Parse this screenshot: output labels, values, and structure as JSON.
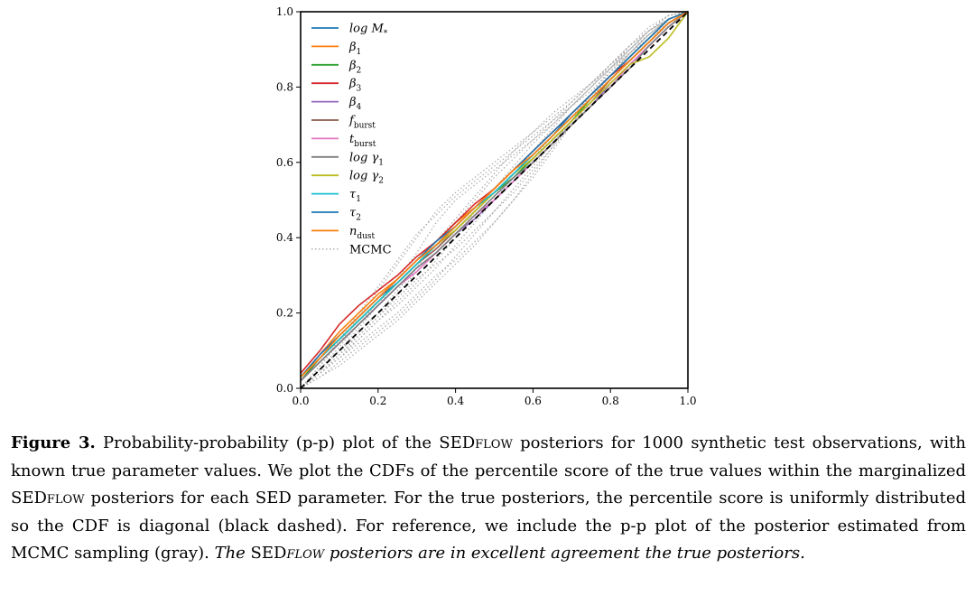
{
  "chart_data": {
    "type": "line",
    "title": "",
    "xlabel": "",
    "ylabel": "",
    "xlim": [
      0,
      1
    ],
    "ylim": [
      0,
      1
    ],
    "xticks": [
      "0.0",
      "0.2",
      "0.4",
      "0.6",
      "0.8",
      "1.0"
    ],
    "yticks": [
      "0.0",
      "0.2",
      "0.4",
      "0.6",
      "0.8",
      "1.0"
    ],
    "grid": false,
    "legend_position": "top-left",
    "diagonal": {
      "style": "black dashed",
      "x": [
        0,
        1
      ],
      "y": [
        0,
        1
      ]
    },
    "x": [
      0,
      0.05,
      0.1,
      0.15,
      0.2,
      0.25,
      0.3,
      0.35,
      0.4,
      0.45,
      0.5,
      0.55,
      0.6,
      0.65,
      0.7,
      0.75,
      0.8,
      0.85,
      0.9,
      0.95,
      1.0
    ],
    "series": [
      {
        "name": "log M_*",
        "legend_main": "log M",
        "legend_sub": "*",
        "color": "#1f77b4",
        "values": [
          0.03,
          0.09,
          0.14,
          0.19,
          0.24,
          0.28,
          0.33,
          0.38,
          0.43,
          0.48,
          0.52,
          0.57,
          0.62,
          0.67,
          0.73,
          0.78,
          0.83,
          0.88,
          0.93,
          0.98,
          1.0
        ]
      },
      {
        "name": "β1",
        "legend_main": "β",
        "legend_sub": "1",
        "color": "#ff7f0e",
        "values": [
          0.03,
          0.09,
          0.15,
          0.2,
          0.25,
          0.29,
          0.34,
          0.39,
          0.44,
          0.48,
          0.53,
          0.58,
          0.63,
          0.68,
          0.73,
          0.78,
          0.83,
          0.88,
          0.93,
          0.98,
          1.0
        ]
      },
      {
        "name": "β2",
        "legend_main": "β",
        "legend_sub": "2",
        "color": "#2ca02c",
        "values": [
          0.02,
          0.08,
          0.13,
          0.18,
          0.23,
          0.28,
          0.33,
          0.38,
          0.42,
          0.47,
          0.52,
          0.56,
          0.61,
          0.66,
          0.71,
          0.77,
          0.82,
          0.87,
          0.92,
          0.97,
          1.0
        ]
      },
      {
        "name": "β3",
        "legend_main": "β",
        "legend_sub": "3",
        "color": "#d62728",
        "values": [
          0.04,
          0.1,
          0.17,
          0.22,
          0.26,
          0.3,
          0.35,
          0.39,
          0.44,
          0.49,
          0.53,
          0.58,
          0.63,
          0.68,
          0.73,
          0.78,
          0.83,
          0.87,
          0.92,
          0.97,
          1.0
        ]
      },
      {
        "name": "β4",
        "legend_main": "β",
        "legend_sub": "4",
        "color": "#9467bd",
        "values": [
          0.02,
          0.07,
          0.12,
          0.17,
          0.22,
          0.27,
          0.32,
          0.36,
          0.41,
          0.45,
          0.5,
          0.55,
          0.6,
          0.65,
          0.7,
          0.75,
          0.81,
          0.86,
          0.91,
          0.96,
          1.0
        ]
      },
      {
        "name": "f_burst",
        "legend_main": "f",
        "legend_sub": "burst",
        "color": "#8c564b",
        "values": [
          0.03,
          0.08,
          0.13,
          0.18,
          0.23,
          0.28,
          0.33,
          0.37,
          0.42,
          0.47,
          0.52,
          0.57,
          0.61,
          0.66,
          0.71,
          0.76,
          0.82,
          0.87,
          0.92,
          0.97,
          1.0
        ]
      },
      {
        "name": "t_burst",
        "legend_main": "t",
        "legend_sub": "burst",
        "color": "#e377c2",
        "values": [
          0.02,
          0.07,
          0.12,
          0.17,
          0.22,
          0.27,
          0.31,
          0.36,
          0.41,
          0.46,
          0.5,
          0.55,
          0.6,
          0.65,
          0.7,
          0.75,
          0.8,
          0.86,
          0.91,
          0.96,
          1.0
        ]
      },
      {
        "name": "log γ1",
        "legend_main": "log γ",
        "legend_sub": "1",
        "color": "#7f7f7f",
        "values": [
          0.02,
          0.07,
          0.12,
          0.17,
          0.22,
          0.27,
          0.32,
          0.36,
          0.41,
          0.46,
          0.51,
          0.56,
          0.6,
          0.65,
          0.7,
          0.75,
          0.8,
          0.85,
          0.91,
          0.96,
          1.0
        ]
      },
      {
        "name": "log γ2",
        "legend_main": "log γ",
        "legend_sub": "2",
        "color": "#bcbd22",
        "values": [
          0.03,
          0.08,
          0.13,
          0.18,
          0.23,
          0.28,
          0.33,
          0.38,
          0.42,
          0.47,
          0.52,
          0.57,
          0.61,
          0.66,
          0.71,
          0.76,
          0.81,
          0.86,
          0.88,
          0.93,
          1.0
        ]
      },
      {
        "name": "τ1",
        "legend_main": "τ",
        "legend_sub": "1",
        "color": "#17becf",
        "values": [
          0.03,
          0.08,
          0.13,
          0.18,
          0.23,
          0.28,
          0.33,
          0.38,
          0.43,
          0.48,
          0.52,
          0.57,
          0.62,
          0.67,
          0.72,
          0.77,
          0.82,
          0.87,
          0.92,
          0.97,
          1.0
        ]
      },
      {
        "name": "τ2",
        "legend_main": "τ",
        "legend_sub": "2",
        "color": "#1f77b4",
        "values": [
          0.03,
          0.09,
          0.14,
          0.19,
          0.24,
          0.29,
          0.34,
          0.39,
          0.43,
          0.48,
          0.53,
          0.58,
          0.63,
          0.68,
          0.73,
          0.78,
          0.83,
          0.88,
          0.93,
          0.98,
          1.0
        ]
      },
      {
        "name": "n_dust",
        "legend_main": "n",
        "legend_sub": "dust",
        "color": "#ff7f0e",
        "values": [
          0.03,
          0.08,
          0.14,
          0.19,
          0.24,
          0.29,
          0.34,
          0.38,
          0.43,
          0.48,
          0.53,
          0.58,
          0.62,
          0.67,
          0.72,
          0.77,
          0.82,
          0.87,
          0.92,
          0.97,
          1.0
        ]
      }
    ],
    "mcmc": {
      "name": "MCMC",
      "legend_main": "MCMC",
      "color": "#aaaaaa",
      "style": "dotted",
      "curves": [
        [
          0.0,
          0.05,
          0.1,
          0.16,
          0.22,
          0.29,
          0.36,
          0.44,
          0.5,
          0.54,
          0.58,
          0.62,
          0.66,
          0.7,
          0.75,
          0.8,
          0.85,
          0.9,
          0.95,
          0.98,
          1.0
        ],
        [
          0.0,
          0.04,
          0.08,
          0.12,
          0.16,
          0.2,
          0.25,
          0.3,
          0.34,
          0.39,
          0.44,
          0.5,
          0.56,
          0.63,
          0.7,
          0.77,
          0.84,
          0.9,
          0.95,
          0.98,
          1.0
        ],
        [
          0.0,
          0.06,
          0.12,
          0.19,
          0.26,
          0.33,
          0.4,
          0.47,
          0.52,
          0.56,
          0.6,
          0.64,
          0.68,
          0.72,
          0.76,
          0.81,
          0.86,
          0.91,
          0.96,
          0.99,
          1.0
        ],
        [
          0.0,
          0.03,
          0.07,
          0.11,
          0.15,
          0.19,
          0.24,
          0.29,
          0.35,
          0.41,
          0.47,
          0.53,
          0.59,
          0.65,
          0.71,
          0.77,
          0.83,
          0.89,
          0.94,
          0.98,
          1.0
        ],
        [
          0.0,
          0.05,
          0.11,
          0.17,
          0.23,
          0.28,
          0.33,
          0.38,
          0.44,
          0.5,
          0.56,
          0.61,
          0.66,
          0.71,
          0.76,
          0.81,
          0.86,
          0.91,
          0.95,
          0.98,
          1.0
        ],
        [
          0.0,
          0.04,
          0.09,
          0.14,
          0.19,
          0.24,
          0.29,
          0.33,
          0.37,
          0.42,
          0.47,
          0.52,
          0.58,
          0.64,
          0.7,
          0.76,
          0.82,
          0.88,
          0.93,
          0.98,
          1.0
        ],
        [
          0.0,
          0.06,
          0.13,
          0.2,
          0.27,
          0.34,
          0.41,
          0.46,
          0.51,
          0.55,
          0.59,
          0.63,
          0.67,
          0.71,
          0.75,
          0.79,
          0.84,
          0.89,
          0.94,
          0.98,
          1.0
        ],
        [
          0.0,
          0.03,
          0.06,
          0.1,
          0.14,
          0.18,
          0.23,
          0.28,
          0.33,
          0.38,
          0.44,
          0.5,
          0.57,
          0.64,
          0.71,
          0.78,
          0.85,
          0.91,
          0.95,
          0.99,
          1.0
        ],
        [
          0.0,
          0.05,
          0.1,
          0.15,
          0.2,
          0.26,
          0.32,
          0.39,
          0.45,
          0.51,
          0.57,
          0.63,
          0.68,
          0.73,
          0.77,
          0.81,
          0.85,
          0.89,
          0.93,
          0.97,
          1.0
        ],
        [
          0.0,
          0.04,
          0.09,
          0.13,
          0.18,
          0.22,
          0.27,
          0.32,
          0.38,
          0.44,
          0.5,
          0.56,
          0.61,
          0.67,
          0.72,
          0.78,
          0.83,
          0.89,
          0.94,
          0.98,
          1.0
        ],
        [
          0.0,
          0.05,
          0.1,
          0.14,
          0.19,
          0.25,
          0.31,
          0.36,
          0.41,
          0.46,
          0.51,
          0.57,
          0.63,
          0.69,
          0.75,
          0.8,
          0.86,
          0.9,
          0.95,
          0.99,
          1.0
        ],
        [
          0.0,
          0.04,
          0.08,
          0.13,
          0.18,
          0.23,
          0.28,
          0.34,
          0.4,
          0.47,
          0.53,
          0.59,
          0.65,
          0.7,
          0.75,
          0.8,
          0.85,
          0.9,
          0.94,
          0.98,
          1.0
        ]
      ]
    }
  },
  "caption": {
    "label": "Figure 3.",
    "p1": " Probability-probability (p-p) plot of the SED",
    "sc1": "flow",
    "p2": " posteriors for 1000 synthetic test observations, with known true parameter values. We plot the CDFs of the percentile score of the true values within the marginalized SED",
    "sc2": "flow",
    "p3": " posteriors for each SED parameter. For the true posteriors, the percentile score is uniformly distributed so the CDF is diagonal (black dashed). For reference, we include the p-p plot of the posterior estimated from MCMC sampling (gray). ",
    "em1": "The",
    "p4": " SED",
    "sc3": "flow",
    "em2": " posteriors are in excellent agreement the true posteriors."
  }
}
